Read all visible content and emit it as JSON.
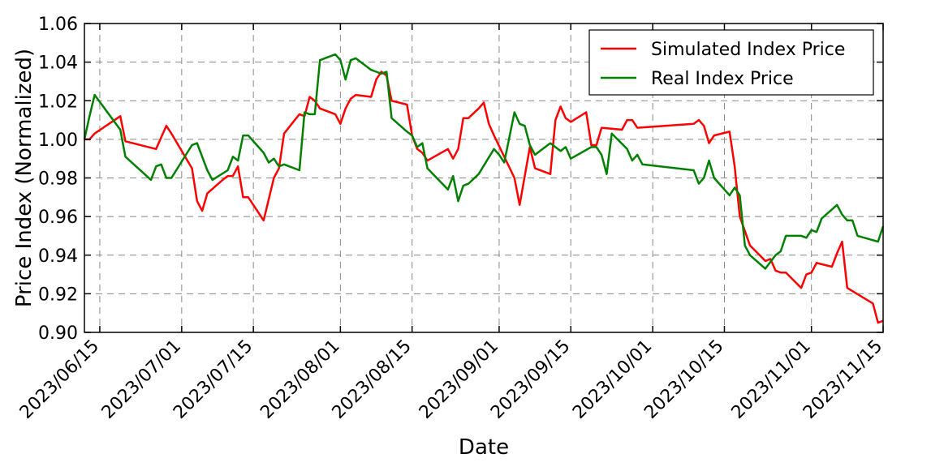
{
  "chart_data": {
    "type": "line",
    "xlabel": "Date",
    "ylabel": "Price Index (Normalized)",
    "ylim": [
      0.9,
      1.06
    ],
    "xlim": [
      "2023/06/12",
      "2023/11/15"
    ],
    "x_ticks": [
      "2023/06/15",
      "2023/07/01",
      "2023/07/15",
      "2023/08/01",
      "2023/08/15",
      "2023/09/01",
      "2023/09/15",
      "2023/10/01",
      "2023/10/15",
      "2023/11/01",
      "2023/11/15"
    ],
    "y_ticks": [
      "0.90",
      "0.92",
      "0.94",
      "0.96",
      "0.98",
      "1.00",
      "1.02",
      "1.04",
      "1.06"
    ],
    "grid": "dashed",
    "legend_position": "top-right",
    "series": [
      {
        "name": "Simulated Index Price",
        "color": "#ff0000",
        "points": [
          [
            "2023/06/12",
            1.0
          ],
          [
            "2023/06/13",
            1.0
          ],
          [
            "2023/06/14",
            1.003
          ],
          [
            "2023/06/19",
            1.012
          ],
          [
            "2023/06/20",
            0.999
          ],
          [
            "2023/06/26",
            0.995
          ],
          [
            "2023/06/28",
            1.007
          ],
          [
            "2023/06/29",
            1.003
          ],
          [
            "2023/07/03",
            0.985
          ],
          [
            "2023/07/04",
            0.968
          ],
          [
            "2023/07/05",
            0.963
          ],
          [
            "2023/07/06",
            0.972
          ],
          [
            "2023/07/09",
            0.979
          ],
          [
            "2023/07/10",
            0.981
          ],
          [
            "2023/07/11",
            0.981
          ],
          [
            "2023/07/12",
            0.986
          ],
          [
            "2023/07/13",
            0.97
          ],
          [
            "2023/07/14",
            0.97
          ],
          [
            "2023/07/17",
            0.958
          ],
          [
            "2023/07/19",
            0.98
          ],
          [
            "2023/07/20",
            0.985
          ],
          [
            "2023/07/21",
            1.003
          ],
          [
            "2023/07/24",
            1.013
          ],
          [
            "2023/07/25",
            1.012
          ],
          [
            "2023/07/26",
            1.022
          ],
          [
            "2023/07/27",
            1.02
          ],
          [
            "2023/07/28",
            1.016
          ],
          [
            "2023/07/31",
            1.013
          ],
          [
            "2023/08/01",
            1.008
          ],
          [
            "2023/08/02",
            1.016
          ],
          [
            "2023/08/03",
            1.021
          ],
          [
            "2023/08/04",
            1.023
          ],
          [
            "2023/08/07",
            1.022
          ],
          [
            "2023/08/08",
            1.031
          ],
          [
            "2023/08/09",
            1.035
          ],
          [
            "2023/08/10",
            1.033
          ],
          [
            "2023/08/11",
            1.02
          ],
          [
            "2023/08/14",
            1.018
          ],
          [
            "2023/08/15",
            1.002
          ],
          [
            "2023/08/16",
            0.995
          ],
          [
            "2023/08/17",
            0.993
          ],
          [
            "2023/08/18",
            0.989
          ],
          [
            "2023/08/22",
            0.995
          ],
          [
            "2023/08/23",
            0.99
          ],
          [
            "2023/08/24",
            0.995
          ],
          [
            "2023/08/25",
            1.011
          ],
          [
            "2023/08/26",
            1.011
          ],
          [
            "2023/08/28",
            1.016
          ],
          [
            "2023/08/29",
            1.019
          ],
          [
            "2023/08/30",
            1.008
          ],
          [
            "2023/08/31",
            1.002
          ],
          [
            "2023/09/04",
            0.98
          ],
          [
            "2023/09/05",
            0.966
          ],
          [
            "2023/09/07",
            0.996
          ],
          [
            "2023/09/08",
            0.985
          ],
          [
            "2023/09/11",
            0.982
          ],
          [
            "2023/09/12",
            1.01
          ],
          [
            "2023/09/13",
            1.017
          ],
          [
            "2023/09/14",
            1.011
          ],
          [
            "2023/09/15",
            1.009
          ],
          [
            "2023/09/18",
            1.014
          ],
          [
            "2023/09/19",
            0.997
          ],
          [
            "2023/09/20",
            0.997
          ],
          [
            "2023/09/21",
            1.006
          ],
          [
            "2023/09/25",
            1.005
          ],
          [
            "2023/09/26",
            1.01
          ],
          [
            "2023/09/27",
            1.01
          ],
          [
            "2023/09/28",
            1.006
          ],
          [
            "2023/10/09",
            1.008
          ],
          [
            "2023/10/10",
            1.01
          ],
          [
            "2023/10/11",
            1.007
          ],
          [
            "2023/10/12",
            0.998
          ],
          [
            "2023/10/13",
            1.002
          ],
          [
            "2023/10/16",
            1.004
          ],
          [
            "2023/10/17",
            0.986
          ],
          [
            "2023/10/18",
            0.96
          ],
          [
            "2023/10/20",
            0.945
          ],
          [
            "2023/10/23",
            0.937
          ],
          [
            "2023/10/24",
            0.938
          ],
          [
            "2023/10/25",
            0.932
          ],
          [
            "2023/10/26",
            0.931
          ],
          [
            "2023/10/27",
            0.931
          ],
          [
            "2023/10/30",
            0.923
          ],
          [
            "2023/10/31",
            0.93
          ],
          [
            "2023/11/01",
            0.931
          ],
          [
            "2023/11/02",
            0.936
          ],
          [
            "2023/11/05",
            0.934
          ],
          [
            "2023/11/06",
            0.941
          ],
          [
            "2023/11/07",
            0.947
          ],
          [
            "2023/11/08",
            0.923
          ],
          [
            "2023/11/13",
            0.915
          ],
          [
            "2023/11/14",
            0.905
          ],
          [
            "2023/11/15",
            0.906
          ]
        ]
      },
      {
        "name": "Real Index Price",
        "color": "#008000",
        "points": [
          [
            "2023/06/12",
            1.0
          ],
          [
            "2023/06/13",
            1.012
          ],
          [
            "2023/06/14",
            1.023
          ],
          [
            "2023/06/19",
            1.005
          ],
          [
            "2023/06/20",
            0.991
          ],
          [
            "2023/06/25",
            0.979
          ],
          [
            "2023/06/26",
            0.986
          ],
          [
            "2023/06/27",
            0.987
          ],
          [
            "2023/06/28",
            0.98
          ],
          [
            "2023/06/29",
            0.98
          ],
          [
            "2023/07/03",
            0.997
          ],
          [
            "2023/07/04",
            0.998
          ],
          [
            "2023/07/06",
            0.984
          ],
          [
            "2023/07/07",
            0.979
          ],
          [
            "2023/07/10",
            0.984
          ],
          [
            "2023/07/11",
            0.991
          ],
          [
            "2023/07/12",
            0.989
          ],
          [
            "2023/07/13",
            1.002
          ],
          [
            "2023/07/14",
            1.002
          ],
          [
            "2023/07/17",
            0.993
          ],
          [
            "2023/07/18",
            0.988
          ],
          [
            "2023/07/19",
            0.99
          ],
          [
            "2023/07/20",
            0.986
          ],
          [
            "2023/07/21",
            0.987
          ],
          [
            "2023/07/24",
            0.984
          ],
          [
            "2023/07/25",
            1.014
          ],
          [
            "2023/07/26",
            1.013
          ],
          [
            "2023/07/27",
            1.013
          ],
          [
            "2023/07/28",
            1.041
          ],
          [
            "2023/07/31",
            1.044
          ],
          [
            "2023/08/01",
            1.041
          ],
          [
            "2023/08/02",
            1.031
          ],
          [
            "2023/08/03",
            1.041
          ],
          [
            "2023/08/04",
            1.042
          ],
          [
            "2023/08/07",
            1.036
          ],
          [
            "2023/08/08",
            1.035
          ],
          [
            "2023/08/09",
            1.034
          ],
          [
            "2023/08/10",
            1.035
          ],
          [
            "2023/08/11",
            1.011
          ],
          [
            "2023/08/14",
            1.004
          ],
          [
            "2023/08/15",
            1.002
          ],
          [
            "2023/08/16",
            0.996
          ],
          [
            "2023/08/17",
            0.998
          ],
          [
            "2023/08/18",
            0.985
          ],
          [
            "2023/08/22",
            0.974
          ],
          [
            "2023/08/23",
            0.981
          ],
          [
            "2023/08/24",
            0.968
          ],
          [
            "2023/08/25",
            0.976
          ],
          [
            "2023/08/26",
            0.977
          ],
          [
            "2023/08/28",
            0.982
          ],
          [
            "2023/08/31",
            0.995
          ],
          [
            "2023/09/01",
            0.992
          ],
          [
            "2023/09/02",
            0.988
          ],
          [
            "2023/09/04",
            1.014
          ],
          [
            "2023/09/05",
            1.008
          ],
          [
            "2023/09/06",
            1.007
          ],
          [
            "2023/09/07",
            0.997
          ],
          [
            "2023/09/08",
            0.992
          ],
          [
            "2023/09/11",
            0.998
          ],
          [
            "2023/09/13",
            0.994
          ],
          [
            "2023/09/14",
            0.996
          ],
          [
            "2023/09/15",
            0.99
          ],
          [
            "2023/09/19",
            0.996
          ],
          [
            "2023/09/20",
            0.996
          ],
          [
            "2023/09/21",
            0.992
          ],
          [
            "2023/09/22",
            0.982
          ],
          [
            "2023/09/23",
            1.003
          ],
          [
            "2023/09/26",
            0.995
          ],
          [
            "2023/09/27",
            0.989
          ],
          [
            "2023/09/28",
            0.992
          ],
          [
            "2023/09/29",
            0.987
          ],
          [
            "2023/10/09",
            0.984
          ],
          [
            "2023/10/10",
            0.977
          ],
          [
            "2023/10/11",
            0.98
          ],
          [
            "2023/10/12",
            0.989
          ],
          [
            "2023/10/13",
            0.98
          ],
          [
            "2023/10/16",
            0.971
          ],
          [
            "2023/10/17",
            0.975
          ],
          [
            "2023/10/18",
            0.971
          ],
          [
            "2023/10/19",
            0.945
          ],
          [
            "2023/10/20",
            0.94
          ],
          [
            "2023/10/23",
            0.933
          ],
          [
            "2023/10/25",
            0.94
          ],
          [
            "2023/10/26",
            0.942
          ],
          [
            "2023/10/27",
            0.95
          ],
          [
            "2023/10/30",
            0.95
          ],
          [
            "2023/10/31",
            0.949
          ],
          [
            "2023/11/01",
            0.953
          ],
          [
            "2023/11/02",
            0.952
          ],
          [
            "2023/11/03",
            0.959
          ],
          [
            "2023/11/06",
            0.966
          ],
          [
            "2023/11/07",
            0.961
          ],
          [
            "2023/11/08",
            0.958
          ],
          [
            "2023/11/09",
            0.958
          ],
          [
            "2023/11/10",
            0.95
          ],
          [
            "2023/11/14",
            0.947
          ],
          [
            "2023/11/15",
            0.955
          ]
        ]
      }
    ]
  }
}
